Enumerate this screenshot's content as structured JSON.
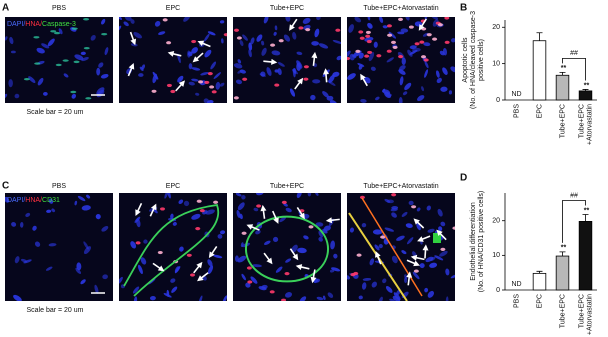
{
  "panels": {
    "a": {
      "letter": "A",
      "labels": [
        "PBS",
        "EPC",
        "Tube+EPC",
        "Tube+EPC+Atorvastatin"
      ],
      "stain": [
        "DAPI/",
        "HNA/",
        "Caspase-3"
      ],
      "scale_bar": "Scale bar = 20 um"
    },
    "c": {
      "letter": "C",
      "labels": [
        "PBS",
        "EPC",
        "Tube+EPC",
        "Tube+EPC+Atorvastatin"
      ],
      "stain": [
        "DAPI/",
        "HNA/",
        "CD31"
      ],
      "scale_bar": "Scale bar = 20 um"
    }
  },
  "chart_data": [
    {
      "type": "bar",
      "letter": "B",
      "ylabel": [
        "Apoptotic cells",
        "(No. of HNA/cleaved caspase-3",
        "positive cells)"
      ],
      "categories": [
        "PBS",
        "EPC",
        "Tube+EPC",
        "Tube+EPC\n+Atorvastatin"
      ],
      "values": [
        null,
        16.3,
        6.8,
        2.5
      ],
      "errors": [
        null,
        2.2,
        0.8,
        0.4
      ],
      "value_labels": [
        "ND",
        null,
        null,
        null
      ],
      "colors": [
        "#ffffff",
        "#ffffff",
        "#b8b8b8",
        "#111111"
      ],
      "markers": [
        null,
        null,
        "**",
        "**"
      ],
      "bracket_label": "##",
      "ylim": [
        0,
        22
      ],
      "yticks": [
        0,
        10,
        20
      ]
    },
    {
      "type": "bar",
      "letter": "D",
      "ylabel": [
        "Endothelial differentiation",
        "(No. of HNA/CD31 positive cells)"
      ],
      "categories": [
        "PBS",
        "EPC",
        "Tube+EPC",
        "Tube+EPC\n+Atorvastatin"
      ],
      "values": [
        null,
        4.8,
        9.8,
        19.8
      ],
      "errors": [
        null,
        0.6,
        1.2,
        2.0
      ],
      "value_labels": [
        "ND",
        null,
        null,
        null
      ],
      "colors": [
        "#ffffff",
        "#ffffff",
        "#b8b8b8",
        "#111111"
      ],
      "markers": [
        null,
        null,
        "**",
        "**"
      ],
      "bracket_label": "##",
      "ylim": [
        0,
        28
      ],
      "yticks": [
        0,
        10,
        20
      ]
    }
  ]
}
